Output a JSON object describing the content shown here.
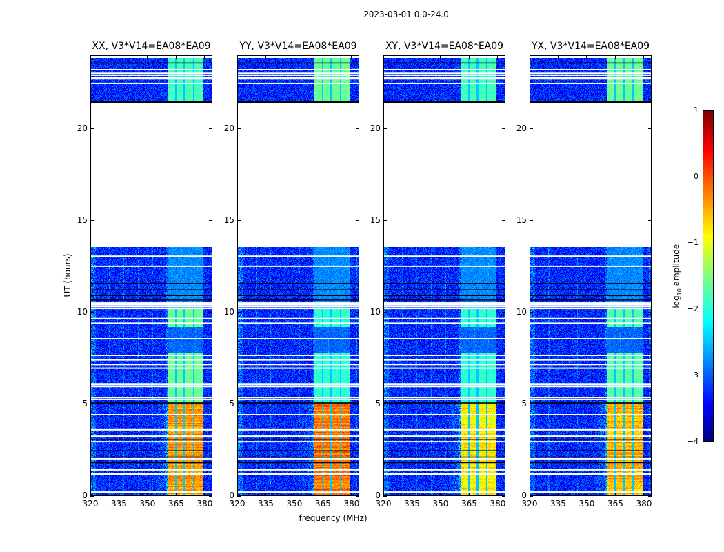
{
  "chart_data": {
    "type": "heatmap",
    "title": "2023-03-01 0.0-24.0",
    "xlabel": "frequency (MHz)",
    "ylabel": "UT (hours)",
    "xlim": [
      320,
      384
    ],
    "ylim": [
      0,
      24
    ],
    "xticks": [
      "320",
      "335",
      "350",
      "365",
      "380"
    ],
    "xtick_values": [
      320,
      335,
      350,
      365,
      380
    ],
    "yticks": [
      "0",
      "5",
      "10",
      "15",
      "20"
    ],
    "ytick_values": [
      0,
      5,
      10,
      15,
      20
    ],
    "colormap": "jet",
    "colorbar": {
      "label_prefix": "log",
      "label_sub": "10",
      "label_suffix": " amplitude",
      "range": [
        -4,
        1
      ],
      "ticks": [
        "1",
        "0",
        "−1",
        "−2",
        "−3",
        "−4"
      ],
      "tick_values": [
        1,
        0,
        -1,
        -2,
        -3,
        -4
      ]
    },
    "data_description": {
      "background_log_amp": -3.2,
      "rfi_band_mhz": [
        360.5,
        379.5
      ],
      "rfi_channel_gaps_mhz": [
        365,
        369.5,
        374.5
      ],
      "data_spans_hours": [
        [
          0,
          13.55
        ],
        [
          21.45,
          23.9
        ]
      ],
      "white_flag_rows_hours": [
        0.26,
        1.24,
        1.47,
        2.07,
        3.0,
        3.3,
        3.65,
        4.47,
        5.3,
        5.4,
        6.0,
        6.1,
        6.15,
        7.0,
        7.2,
        7.45,
        7.7,
        8.6,
        9.45,
        9.7,
        10.25,
        10.35,
        10.45,
        10.55,
        12.55,
        13.1,
        22.5,
        22.75,
        22.8,
        22.95,
        23.05,
        23.25
      ],
      "black_flag_rows_hours": [
        1.85,
        2.15,
        2.5,
        3.1,
        5.05,
        5.1,
        10.7,
        10.95,
        11.25,
        11.6,
        21.45,
        21.5,
        23.6
      ]
    },
    "panels": [
      {
        "title": "XX, V3*V14=EA08*EA09",
        "rfi_low_amp": -0.4,
        "rfi_mid_amp": -1.6,
        "rfi_top_amp": -1.8
      },
      {
        "title": "YY, V3*V14=EA08*EA09",
        "rfi_low_amp": -0.2,
        "rfi_mid_amp": -1.9,
        "rfi_top_amp": -1.6
      },
      {
        "title": "XY, V3*V14=EA08*EA09",
        "rfi_low_amp": -0.8,
        "rfi_mid_amp": -1.9,
        "rfi_top_amp": -1.8
      },
      {
        "title": "YX, V3*V14=EA08*EA09",
        "rfi_low_amp": -0.5,
        "rfi_mid_amp": -1.7,
        "rfi_top_amp": -1.6
      }
    ]
  }
}
